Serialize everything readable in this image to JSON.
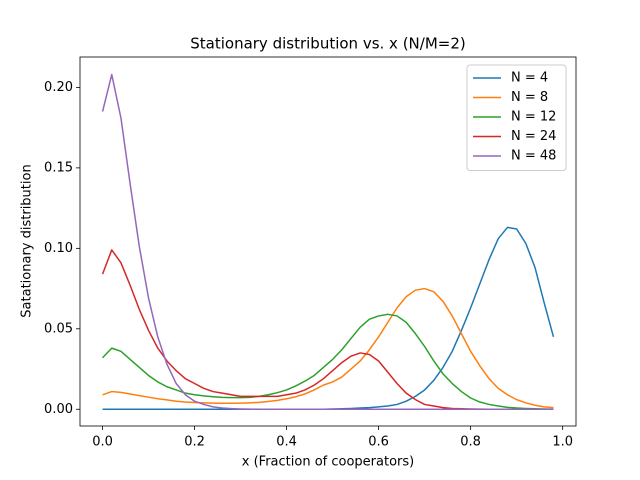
{
  "chart_data": {
    "type": "line",
    "title": "Stationary distribution vs. x (N/M=2)",
    "x_label": "x (Fraction of cooperators)",
    "y_label": "Satationary distribution",
    "x": [
      0,
      0.02,
      0.04,
      0.06,
      0.08,
      0.1,
      0.12,
      0.14,
      0.16,
      0.18,
      0.2,
      0.22,
      0.24,
      0.26,
      0.28,
      0.3,
      0.32,
      0.34,
      0.36,
      0.38,
      0.4,
      0.42,
      0.44,
      0.46,
      0.48,
      0.5,
      0.52,
      0.54,
      0.56,
      0.58,
      0.6,
      0.62,
      0.64,
      0.66,
      0.68,
      0.7,
      0.72,
      0.74,
      0.76,
      0.78,
      0.8,
      0.82,
      0.84,
      0.86,
      0.88,
      0.9,
      0.92,
      0.94,
      0.96,
      0.98
    ],
    "series": [
      {
        "name": "N = 4",
        "color": "#1f77b4",
        "values": [
          0,
          0,
          0,
          0,
          0,
          0,
          0,
          0,
          0,
          0,
          0,
          0,
          0,
          0,
          0,
          0,
          0,
          0,
          0,
          0,
          0,
          0,
          0,
          0,
          0,
          0.0002,
          0.0003,
          0.0005,
          0.0008,
          0.001,
          0.0015,
          0.002,
          0.003,
          0.005,
          0.008,
          0.012,
          0.018,
          0.026,
          0.036,
          0.049,
          0.063,
          0.078,
          0.093,
          0.106,
          0.113,
          0.112,
          0.103,
          0.088,
          0.066,
          0.045
        ]
      },
      {
        "name": "N = 8",
        "color": "#ff7f0e",
        "values": [
          0.009,
          0.011,
          0.0105,
          0.0095,
          0.0085,
          0.0075,
          0.0065,
          0.0058,
          0.005,
          0.0045,
          0.0042,
          0.004,
          0.0038,
          0.0037,
          0.0037,
          0.0038,
          0.004,
          0.0043,
          0.0048,
          0.0055,
          0.0065,
          0.0078,
          0.0095,
          0.012,
          0.015,
          0.017,
          0.02,
          0.025,
          0.03,
          0.037,
          0.045,
          0.054,
          0.063,
          0.07,
          0.074,
          0.075,
          0.073,
          0.067,
          0.058,
          0.047,
          0.036,
          0.027,
          0.019,
          0.013,
          0.009,
          0.006,
          0.004,
          0.0025,
          0.0015,
          0.001
        ]
      },
      {
        "name": "N = 12",
        "color": "#2ca02c",
        "values": [
          0.032,
          0.038,
          0.036,
          0.031,
          0.026,
          0.021,
          0.017,
          0.014,
          0.012,
          0.01,
          0.009,
          0.0083,
          0.0078,
          0.0074,
          0.0072,
          0.0072,
          0.0074,
          0.008,
          0.009,
          0.0103,
          0.012,
          0.0145,
          0.0175,
          0.021,
          0.026,
          0.031,
          0.037,
          0.044,
          0.051,
          0.056,
          0.058,
          0.059,
          0.058,
          0.054,
          0.047,
          0.039,
          0.03,
          0.022,
          0.016,
          0.011,
          0.007,
          0.0045,
          0.003,
          0.002,
          0.0012,
          0.0008,
          0.0005,
          0.0003,
          0.0002,
          0.0001
        ]
      },
      {
        "name": "N = 24",
        "color": "#d62728",
        "values": [
          0.084,
          0.099,
          0.091,
          0.077,
          0.062,
          0.049,
          0.038,
          0.03,
          0.024,
          0.019,
          0.016,
          0.013,
          0.011,
          0.01,
          0.009,
          0.008,
          0.008,
          0.008,
          0.008,
          0.008,
          0.009,
          0.01,
          0.012,
          0.015,
          0.019,
          0.024,
          0.029,
          0.033,
          0.035,
          0.034,
          0.03,
          0.023,
          0.016,
          0.01,
          0.006,
          0.003,
          0.002,
          0.001,
          0.0005,
          0.0003,
          0.0002,
          0.0001,
          0,
          0,
          0,
          0,
          0,
          0,
          0,
          0
        ]
      },
      {
        "name": "N = 48",
        "color": "#9467bd",
        "values": [
          0.185,
          0.208,
          0.181,
          0.14,
          0.101,
          0.069,
          0.045,
          0.028,
          0.016,
          0.009,
          0.005,
          0.003,
          0.0015,
          0.0008,
          0.0004,
          0.0002,
          0.0001,
          0,
          0,
          0,
          0,
          0,
          0,
          0,
          0,
          0,
          0,
          0,
          0,
          0,
          0,
          0,
          0,
          0,
          0,
          0,
          0,
          0,
          0,
          0,
          0,
          0,
          0,
          0,
          0,
          0,
          0,
          0,
          0,
          0
        ]
      }
    ],
    "xlim": [
      -0.049,
      1.029
    ],
    "ylim": [
      -0.0104,
      0.2189
    ],
    "xticks": [
      {
        "value": 0,
        "label": "0.0"
      },
      0.2,
      0.4,
      0.6,
      0.8,
      {
        "value": 1,
        "label": "1.0"
      }
    ],
    "yticks": [
      {
        "value": 0,
        "label": "0.00"
      },
      {
        "value": 0.05,
        "label": "0.05"
      },
      {
        "value": 0.1,
        "label": "0.10"
      },
      {
        "value": 0.15,
        "label": "0.15"
      },
      {
        "value": 0.2,
        "label": "0.20"
      }
    ],
    "legend": "upper right",
    "grid": false
  }
}
